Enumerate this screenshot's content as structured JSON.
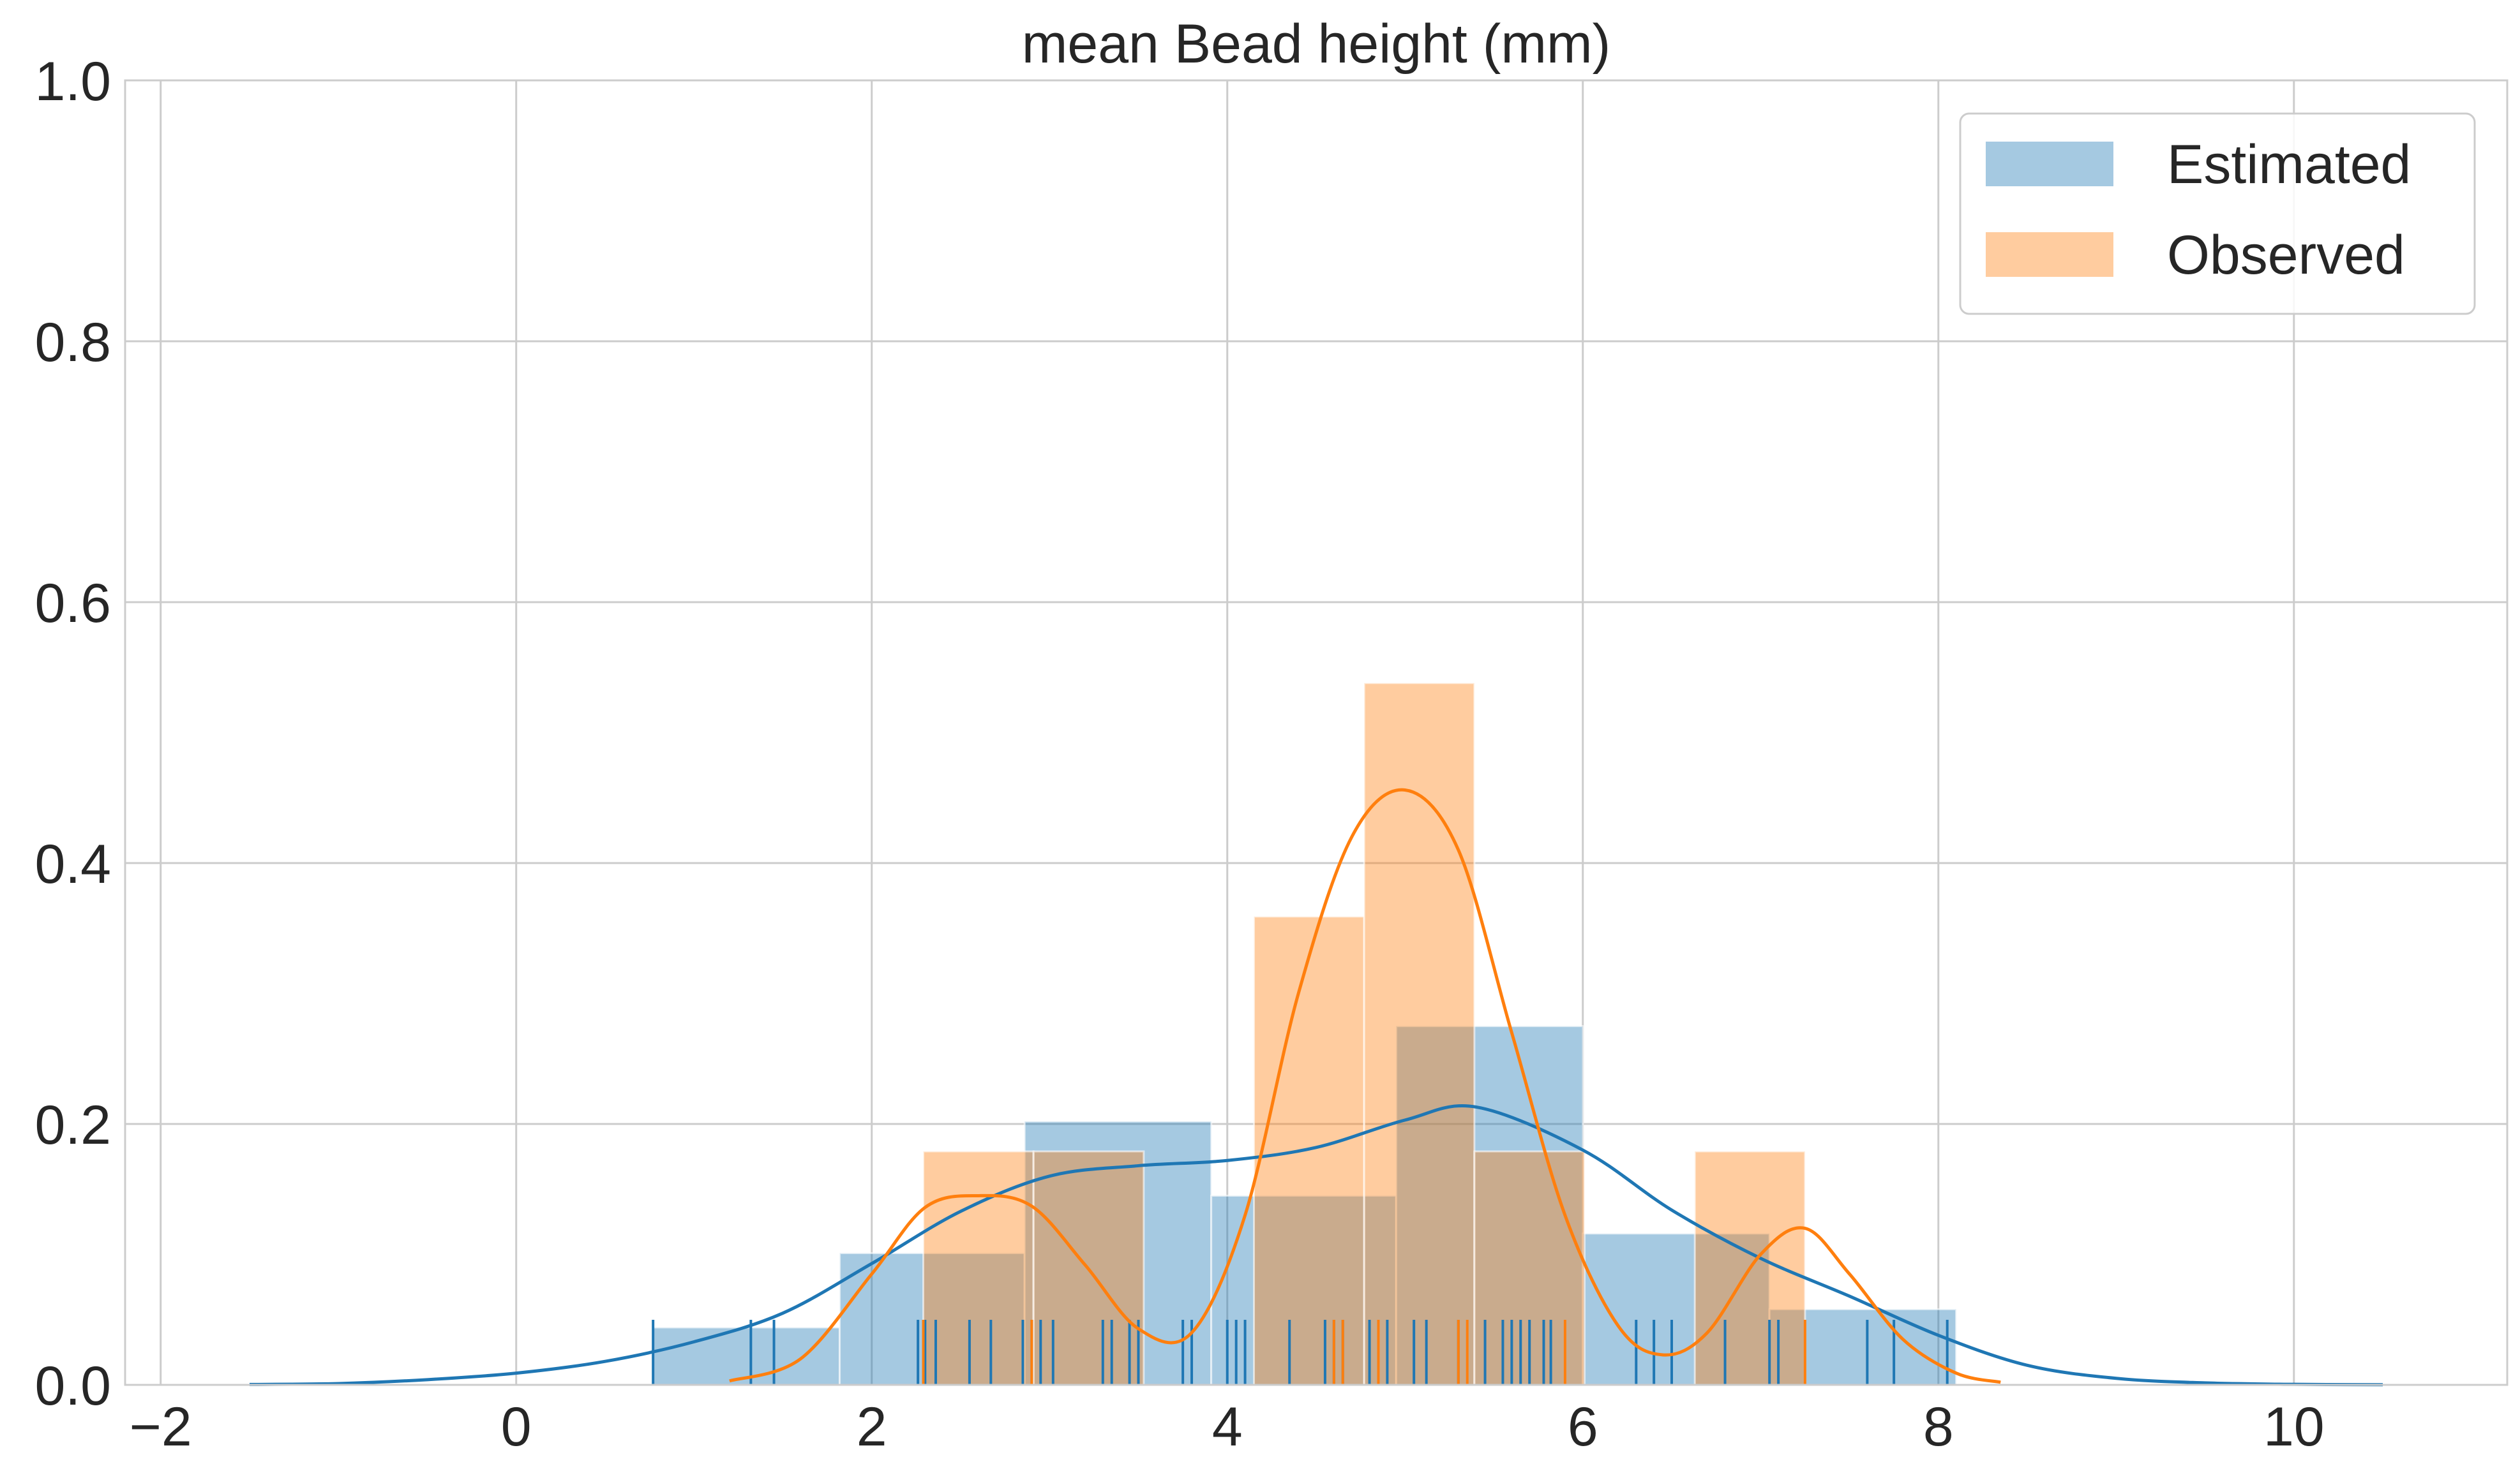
{
  "chart_data": {
    "type": "bar",
    "title": "mean Bead height (mm)",
    "xlabel": "",
    "ylabel": "",
    "xlim": [
      -2.2,
      11.2
    ],
    "ylim": [
      0,
      1.0
    ],
    "x_ticks": [
      "−2",
      "0",
      "2",
      "4",
      "6",
      "8",
      "10"
    ],
    "x_tick_values": [
      -2,
      0,
      2,
      4,
      6,
      8,
      10
    ],
    "y_ticks": [
      "0.0",
      "0.2",
      "0.4",
      "0.6",
      "0.8",
      "1.0"
    ],
    "y_tick_values": [
      0,
      0.2,
      0.4,
      0.6,
      0.8,
      1.0
    ],
    "grid": true,
    "legend_position": "top-right",
    "series": [
      {
        "name": "Estimated",
        "color": "#1f77b4",
        "bin_edges": [
          0.77,
          1.82,
          2.86,
          3.91,
          4.95,
          6.0,
          7.05,
          8.1
        ],
        "densities": [
          0.044,
          0.101,
          0.202,
          0.145,
          0.275,
          0.116,
          0.058
        ],
        "kde_x": [
          -1.5,
          -1.0,
          -0.5,
          0.0,
          0.5,
          1.0,
          1.5,
          2.0,
          2.5,
          3.0,
          3.5,
          4.0,
          4.5,
          5.0,
          5.4,
          6.0,
          6.5,
          7.0,
          7.5,
          8.0,
          8.5,
          9.0,
          9.5,
          10.0,
          10.5
        ],
        "kde_y": [
          0.0003,
          0.001,
          0.004,
          0.009,
          0.018,
          0.033,
          0.055,
          0.093,
          0.133,
          0.16,
          0.168,
          0.172,
          0.182,
          0.203,
          0.213,
          0.18,
          0.134,
          0.097,
          0.068,
          0.038,
          0.015,
          0.005,
          0.0015,
          0.0004,
          0.0001
        ],
        "rug": [
          0.77,
          1.32,
          1.45,
          2.26,
          2.3,
          2.36,
          2.55,
          2.67,
          2.85,
          2.9,
          2.95,
          3.02,
          3.3,
          3.35,
          3.45,
          3.5,
          3.75,
          3.8,
          4.0,
          4.05,
          4.1,
          4.35,
          4.55,
          4.6,
          4.65,
          4.8,
          4.9,
          5.05,
          5.12,
          5.3,
          5.45,
          5.55,
          5.6,
          5.65,
          5.7,
          5.78,
          5.82,
          6.3,
          6.4,
          6.5,
          6.8,
          7.05,
          7.1,
          7.6,
          7.75,
          8.05
        ]
      },
      {
        "name": "Observed",
        "color": "#ff7f0e",
        "bin_edges": [
          2.29,
          2.91,
          3.53,
          4.15,
          4.77,
          5.39,
          6.01,
          6.63,
          7.25
        ],
        "densities": [
          0.179,
          0.179,
          0.0,
          0.359,
          0.538,
          0.179,
          0.0,
          0.179
        ],
        "kde_x": [
          1.2,
          1.6,
          2.0,
          2.3,
          2.6,
          2.9,
          3.2,
          3.5,
          3.8,
          4.1,
          4.4,
          4.7,
          5.0,
          5.3,
          5.6,
          5.9,
          6.2,
          6.45,
          6.7,
          7.0,
          7.25,
          7.5,
          7.8,
          8.1,
          8.35
        ],
        "kde_y": [
          0.003,
          0.02,
          0.085,
          0.136,
          0.145,
          0.137,
          0.092,
          0.043,
          0.04,
          0.13,
          0.3,
          0.42,
          0.456,
          0.41,
          0.27,
          0.13,
          0.045,
          0.023,
          0.04,
          0.1,
          0.12,
          0.085,
          0.035,
          0.009,
          0.002
        ],
        "rug": [
          2.29,
          2.9,
          4.6,
          4.65,
          4.85,
          5.3,
          5.35,
          5.9,
          7.25
        ]
      }
    ]
  }
}
